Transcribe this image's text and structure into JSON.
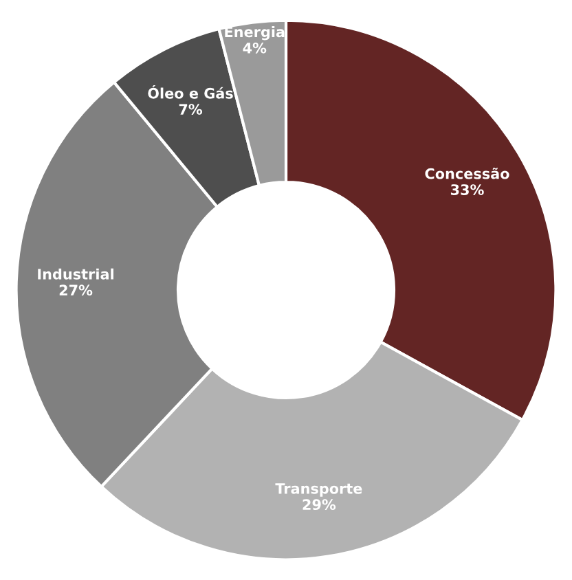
{
  "chart_data": {
    "type": "donut",
    "categories": [
      "Concessão",
      "Transporte",
      "Industrial",
      "Óleo e Gás",
      "Energia"
    ],
    "values": [
      33,
      29,
      27,
      7,
      4
    ],
    "value_labels": [
      "33%",
      "29%",
      "27%",
      "7%",
      "4%"
    ],
    "colors": [
      "#632524",
      "#b2b2b2",
      "#808080",
      "#4e4e4e",
      "#9a9a9a"
    ]
  }
}
